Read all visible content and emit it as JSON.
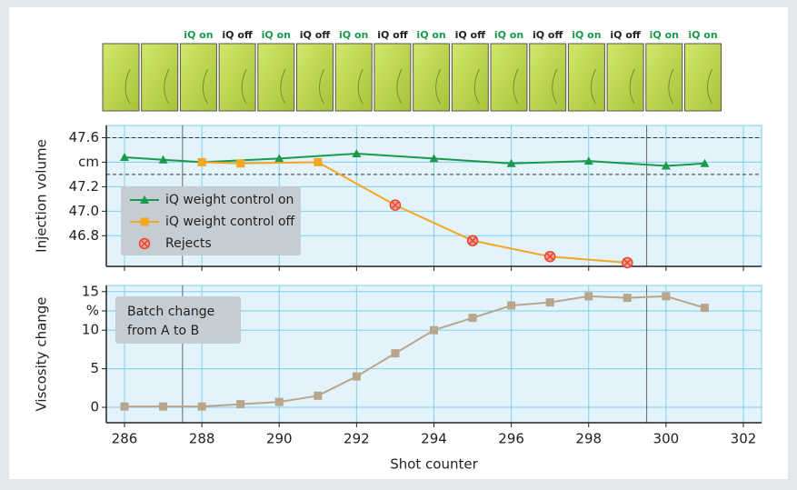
{
  "thumbnail_labels": [
    null,
    null,
    "iQ on",
    "iQ off",
    "iQ on",
    "iQ off",
    "iQ on",
    "iQ off",
    "iQ on",
    "iQ off",
    "iQ on",
    "iQ off",
    "iQ on",
    "iQ off",
    "iQ on",
    "iQ on"
  ],
  "chart_data": [
    {
      "type": "line",
      "ylabel": "Injection volume",
      "xlim": [
        285.53,
        302.47
      ],
      "xticks": [
        286,
        288,
        290,
        292,
        294,
        296,
        298,
        300,
        302
      ],
      "ylim": [
        46.55,
        47.7
      ],
      "yticks": [
        47.6,
        {
          "value": 47.4,
          "label": "cm"
        },
        47.2,
        {
          "value": 47.0,
          "label": "47.0"
        },
        46.8
      ],
      "grid": true,
      "hlines": [
        47.6,
        47.3
      ],
      "vlines": [
        287.5,
        299.5
      ],
      "legend": "lower left",
      "series": [
        {
          "name": "iQ weight control on",
          "color": "#1a9a4a",
          "marker": "triangle",
          "x": [
            286,
            287,
            288,
            290,
            292,
            294,
            296,
            298,
            300,
            301
          ],
          "values": [
            47.44,
            47.42,
            47.4,
            47.43,
            47.47,
            47.43,
            47.39,
            47.41,
            47.37,
            47.39
          ]
        },
        {
          "name": "iQ weight control off",
          "color": "#f5a623",
          "marker": "square",
          "x": [
            288,
            289,
            291,
            293,
            295,
            297,
            299
          ],
          "values": [
            47.4,
            47.39,
            47.4,
            47.05,
            46.76,
            46.63,
            46.58
          ]
        },
        {
          "name": "Rejects",
          "color": "#e8462a",
          "marker": "x-circle",
          "line": false,
          "x": [
            293,
            295,
            297,
            299
          ],
          "values": [
            47.05,
            46.76,
            46.63,
            46.58
          ]
        }
      ]
    },
    {
      "type": "line",
      "ylabel": "Viscosity change",
      "xlabel": "Shot counter",
      "annotation": [
        "Batch change",
        "from A to B"
      ],
      "xlim": [
        285.53,
        302.47
      ],
      "xticks": [
        286,
        288,
        290,
        292,
        294,
        296,
        298,
        300,
        302
      ],
      "ylim": [
        -2,
        15.8
      ],
      "yticks": [
        15,
        {
          "value": 12.5,
          "label": "%"
        },
        10,
        5,
        0
      ],
      "grid": true,
      "vlines": [
        287.5,
        299.5
      ],
      "series": [
        {
          "color": "#b9a58c",
          "marker": "square",
          "x": [
            286,
            287,
            288,
            289,
            290,
            291,
            292,
            293,
            294,
            295,
            296,
            297,
            298,
            299,
            300,
            301
          ],
          "values": [
            0.1,
            0.1,
            0.1,
            0.4,
            0.7,
            1.5,
            4.0,
            7.0,
            10.0,
            11.6,
            13.2,
            13.6,
            14.4,
            14.2,
            14.4,
            12.9
          ]
        }
      ]
    }
  ]
}
